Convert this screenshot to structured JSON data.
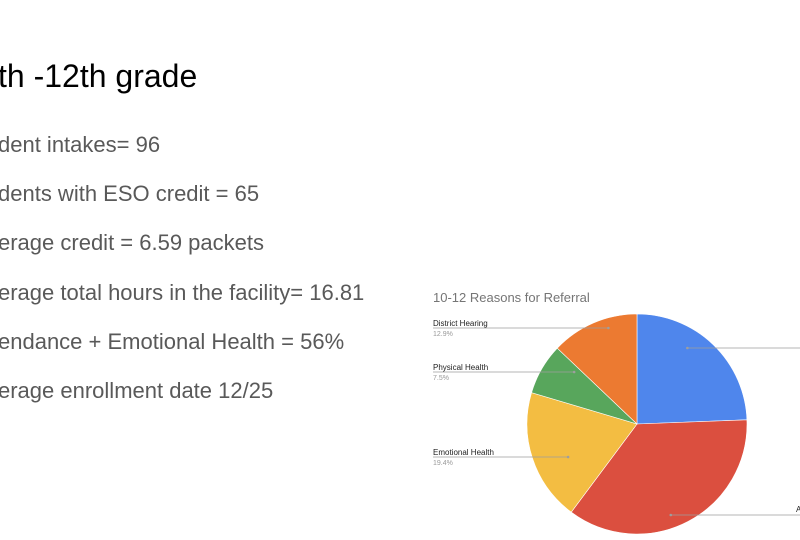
{
  "slide": {
    "title": "th -12th grade",
    "bullets": [
      "dent intakes= 96",
      "dents with ESO credit = 65",
      "erage credit = 6.59 packets",
      "erage total hours in the facility= 16.81",
      "endance + Emotional Health = 56%",
      "erage enrollment date 12/25"
    ]
  },
  "chart_data": {
    "type": "pie",
    "title": "10-12 Reasons for Referral",
    "slices": [
      {
        "name": "",
        "value": 24.4,
        "color": "#4f86ec"
      },
      {
        "name": "",
        "value": 35.8,
        "color": "#db4f3f"
      },
      {
        "name": "Emotional Health",
        "label": "19.4%",
        "value": 19.4,
        "color": "#f3bd42"
      },
      {
        "name": "Physical Health",
        "label": "7.5%",
        "value": 7.5,
        "color": "#58a65c"
      },
      {
        "name": "District Hearing",
        "label": "12.9%",
        "value": 12.9,
        "color": "#ec7a31"
      }
    ],
    "clipped_label_fragment": "A",
    "start": "12 o'clock",
    "direction": "clockwise"
  }
}
